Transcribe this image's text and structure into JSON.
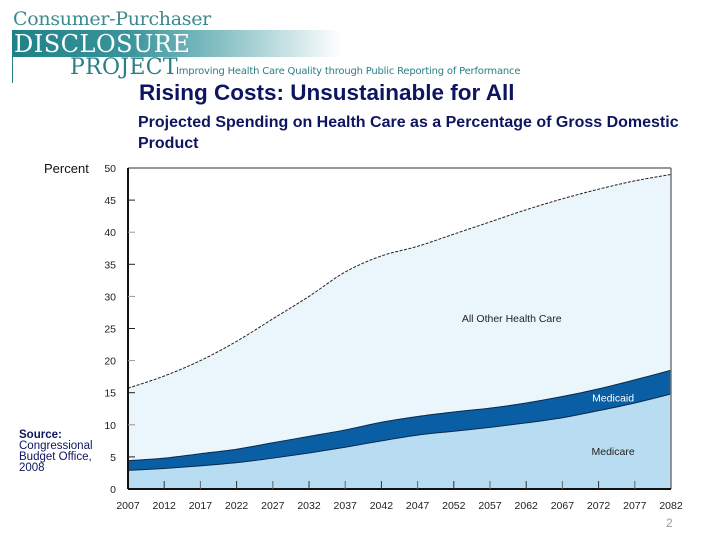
{
  "logo": {
    "line1": "Consumer-Purchaser",
    "line2": "DISCLOSURE",
    "line3": "PROJECT",
    "tagline": "Improving Health Care Quality through Public Reporting of Performance"
  },
  "slide": {
    "title": "Rising Costs:  Unsustainable for All",
    "subtitle": "Projected Spending on Health Care as a Percentage of Gross Domestic Product",
    "source_heading": "Source:",
    "source_text": "Congressional Budget Office, 2008",
    "page_number": "2"
  },
  "colors": {
    "medicare": "#b8ddf2",
    "medicaid": "#0a5ea3",
    "all_other": "#eaf5fc",
    "title": "#0d1560",
    "brand": "#2a7f86"
  },
  "chart_data": {
    "type": "area",
    "stacked": true,
    "title": "Projected Spending on Health Care as a Percentage of Gross Domestic Product",
    "xlabel": "",
    "ylabel": "Percent",
    "xlim": [
      2007,
      2082
    ],
    "ylim": [
      0,
      50
    ],
    "yticks": [
      0,
      5,
      10,
      15,
      20,
      25,
      30,
      35,
      40,
      45,
      50
    ],
    "xticks": [
      2007,
      2012,
      2017,
      2022,
      2027,
      2032,
      2037,
      2042,
      2047,
      2052,
      2057,
      2062,
      2067,
      2072,
      2077,
      2082
    ],
    "grid": false,
    "legend": "inline labels",
    "x": [
      2007,
      2012,
      2017,
      2022,
      2027,
      2032,
      2037,
      2042,
      2047,
      2052,
      2057,
      2062,
      2067,
      2072,
      2077,
      2082
    ],
    "series": [
      {
        "name": "Medicare",
        "label": "Medicare",
        "values": [
          2.9,
          3.2,
          3.6,
          4.1,
          4.8,
          5.6,
          6.5,
          7.5,
          8.4,
          9.0,
          9.6,
          10.3,
          11.1,
          12.2,
          13.4,
          14.8
        ]
      },
      {
        "name": "Medicaid",
        "label": "Medicaid",
        "values": [
          1.5,
          1.6,
          1.9,
          2.1,
          2.4,
          2.6,
          2.7,
          2.9,
          2.9,
          3.0,
          3.0,
          3.1,
          3.3,
          3.4,
          3.6,
          3.7
        ]
      },
      {
        "name": "All Other Health Care",
        "label": "All Other Health Care",
        "values": [
          11.3,
          12.8,
          14.5,
          16.8,
          19.3,
          21.8,
          24.6,
          25.9,
          26.5,
          27.7,
          29.0,
          30.1,
          30.8,
          31.1,
          31.0,
          30.5
        ]
      }
    ],
    "totals": [
      15.7,
      17.6,
      20.0,
      23.0,
      26.5,
      30.0,
      33.8,
      36.3,
      37.8,
      39.7,
      41.6,
      43.5,
      45.2,
      46.7,
      48.0,
      49.0
    ]
  }
}
